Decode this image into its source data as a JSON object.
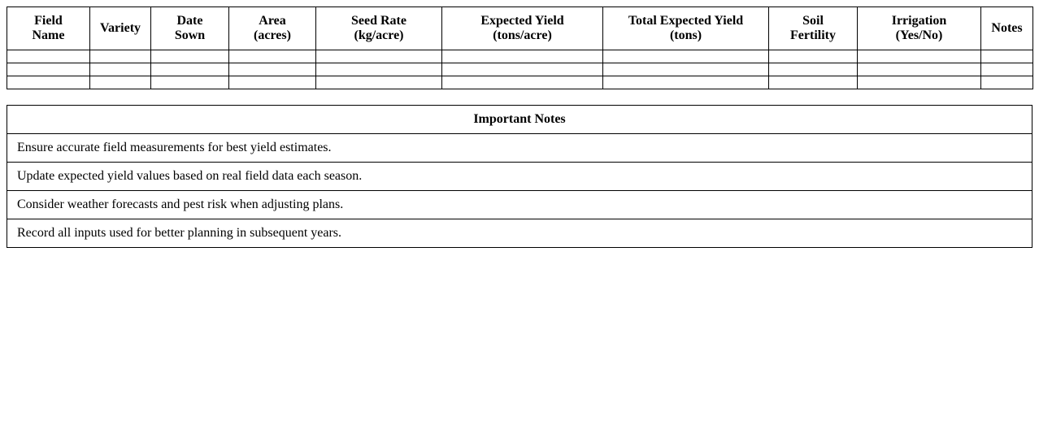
{
  "planting_table": {
    "headers": [
      [
        "Field",
        "Name"
      ],
      [
        "Variety"
      ],
      [
        "Date",
        "Sown"
      ],
      [
        "Area",
        "(acres)"
      ],
      [
        "Seed Rate",
        "(kg/acre)"
      ],
      [
        "Expected Yield",
        "(tons/acre)"
      ],
      [
        "Total Expected Yield",
        "(tons)"
      ],
      [
        "Soil",
        "Fertility"
      ],
      [
        "Irrigation",
        "(Yes/No)"
      ],
      [
        "Notes"
      ]
    ],
    "rows": [
      [
        "",
        "",
        "",
        "",
        "",
        "",
        "",
        "",
        "",
        ""
      ],
      [
        "",
        "",
        "",
        "",
        "",
        "",
        "",
        "",
        "",
        ""
      ],
      [
        "",
        "",
        "",
        "",
        "",
        "",
        "",
        "",
        "",
        ""
      ]
    ]
  },
  "notes_section": {
    "title": "Important Notes",
    "items": [
      "Ensure accurate field measurements for best yield estimates.",
      "Update expected yield values based on real field data each season.",
      "Consider weather forecasts and pest risk when adjusting plans.",
      "Record all inputs used for better planning in subsequent years."
    ]
  }
}
